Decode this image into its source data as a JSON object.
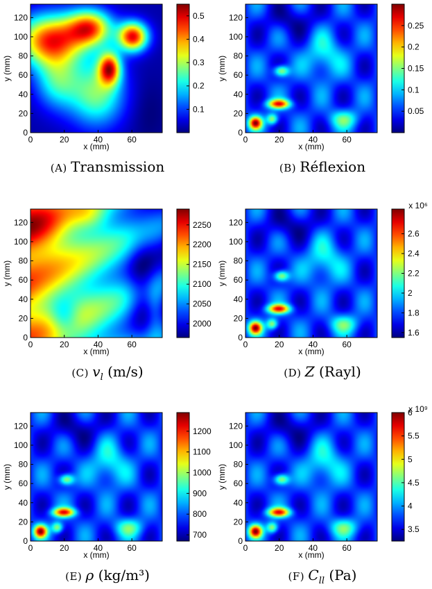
{
  "figure": {
    "panels": [
      {
        "letter": "(A)",
        "caption": "Transmission",
        "caption_math": ""
      },
      {
        "letter": "(B)",
        "caption": "Réflexion",
        "caption_math": ""
      },
      {
        "letter": "(C)",
        "caption": "(m/s)",
        "caption_math": "v_l"
      },
      {
        "letter": "(D)",
        "caption": "(Rayl)",
        "caption_math": "Z"
      },
      {
        "letter": "(E)",
        "caption": "(kg/m³)",
        "caption_math": "ρ"
      },
      {
        "letter": "(F)",
        "caption": "(Pa)",
        "caption_math": "C_ll"
      }
    ]
  },
  "chart_data": [
    {
      "type": "heatmap",
      "title": "",
      "xlabel": "x (mm)",
      "ylabel": "y (mm)",
      "xlim": [
        0,
        78
      ],
      "ylim": [
        0,
        134
      ],
      "x_ticks": [
        0,
        20,
        40,
        60
      ],
      "y_ticks": [
        0,
        20,
        40,
        60,
        80,
        100,
        120
      ],
      "colorbar": {
        "min": 0.0,
        "max": 0.55,
        "ticks": [
          0.1,
          0.2,
          0.3,
          0.4,
          0.5
        ],
        "tick_labels": [
          "0.1",
          "0.2",
          "0.3",
          "0.4",
          "0.5"
        ],
        "exponent": ""
      },
      "colormap": "jet",
      "field_description_values": {
        "peak_max": 0.55,
        "background_min": 0.0
      }
    },
    {
      "type": "heatmap",
      "title": "",
      "xlabel": "x (mm)",
      "ylabel": "y (mm)",
      "xlim": [
        0,
        78
      ],
      "ylim": [
        0,
        134
      ],
      "x_ticks": [
        0,
        20,
        40,
        60
      ],
      "y_ticks": [
        0,
        20,
        40,
        60,
        80,
        100,
        120
      ],
      "colorbar": {
        "min": 0.0,
        "max": 0.3,
        "ticks": [
          0.05,
          0.1,
          0.15,
          0.2,
          0.25
        ],
        "tick_labels": [
          "0.05",
          "0.1",
          "0.15",
          "0.2",
          "0.25"
        ],
        "exponent": ""
      },
      "colormap": "jet"
    },
    {
      "type": "heatmap",
      "title": "",
      "xlabel": "x (mm)",
      "ylabel": "y (mm)",
      "xlim": [
        0,
        78
      ],
      "ylim": [
        0,
        134
      ],
      "x_ticks": [
        0,
        20,
        40,
        60
      ],
      "y_ticks": [
        0,
        20,
        40,
        60,
        80,
        100,
        120
      ],
      "colorbar": {
        "min": 1965,
        "max": 2290,
        "ticks": [
          2000,
          2050,
          2100,
          2150,
          2200,
          2250
        ],
        "tick_labels": [
          "2000",
          "2050",
          "2100",
          "2150",
          "2200",
          "2250"
        ],
        "exponent": ""
      },
      "colormap": "jet"
    },
    {
      "type": "heatmap",
      "title": "",
      "xlabel": "x (mm)",
      "ylabel": "y (mm)",
      "xlim": [
        0,
        78
      ],
      "ylim": [
        0,
        134
      ],
      "x_ticks": [
        0,
        20,
        40,
        60
      ],
      "y_ticks": [
        0,
        20,
        40,
        60,
        80,
        100,
        120
      ],
      "colorbar": {
        "min": 1.55,
        "max": 2.85,
        "ticks": [
          1.6,
          1.8,
          2,
          2.2,
          2.4,
          2.6
        ],
        "tick_labels": [
          "1.6",
          "1.8",
          "2",
          "2.2",
          "2.4",
          "2.6"
        ],
        "exponent": "x 10⁶"
      },
      "colormap": "jet"
    },
    {
      "type": "heatmap",
      "title": "",
      "xlabel": "x (mm)",
      "ylabel": "y (mm)",
      "xlim": [
        0,
        78
      ],
      "ylim": [
        0,
        134
      ],
      "x_ticks": [
        0,
        20,
        40,
        60
      ],
      "y_ticks": [
        0,
        20,
        40,
        60,
        80,
        100,
        120
      ],
      "colorbar": {
        "min": 670,
        "max": 1290,
        "ticks": [
          700,
          800,
          900,
          1000,
          1100,
          1200
        ],
        "tick_labels": [
          "700",
          "800",
          "900",
          "1000",
          "1100",
          "1200"
        ],
        "exponent": ""
      },
      "colormap": "jet"
    },
    {
      "type": "heatmap",
      "title": "",
      "xlabel": "x (mm)",
      "ylabel": "y (mm)",
      "xlim": [
        0,
        78
      ],
      "ylim": [
        0,
        134
      ],
      "x_ticks": [
        0,
        20,
        40,
        60
      ],
      "y_ticks": [
        0,
        20,
        40,
        60,
        80,
        100,
        120
      ],
      "colorbar": {
        "min": 3.25,
        "max": 6.0,
        "ticks": [
          3.5,
          4,
          4.5,
          5,
          5.5,
          6
        ],
        "tick_labels": [
          "3.5",
          "4",
          "4.5",
          "5",
          "5.5",
          "6"
        ],
        "exponent": "x 10⁹"
      },
      "colormap": "jet"
    }
  ]
}
